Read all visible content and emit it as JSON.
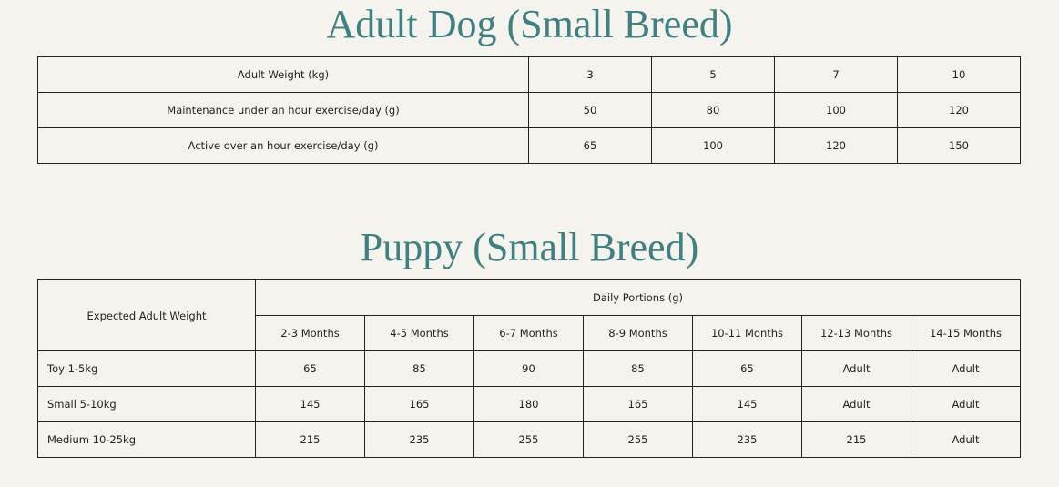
{
  "adult": {
    "title": "Adult Dog (Small Breed)",
    "rows": [
      [
        "Adult Weight (kg)",
        3,
        5,
        7,
        10
      ],
      [
        "Maintenance under an hour exercise/day (g)",
        50,
        80,
        100,
        120
      ],
      [
        "Active over an hour exercise/day (g)",
        65,
        100,
        120,
        150
      ]
    ]
  },
  "puppy": {
    "title": "Puppy (Small Breed)",
    "row_header": "Expected Adult Weight",
    "group_header": "Daily Portions (g)",
    "columns": [
      "2-3 Months",
      "4-5 Months",
      "6-7 Months",
      "8-9 Months",
      "10-11 Months",
      "12-13 Months",
      "14-15 Months"
    ],
    "rows": [
      {
        "label": "Toy 1-5kg",
        "values": [
          65,
          85,
          90,
          85,
          65,
          "Adult",
          "Adult"
        ]
      },
      {
        "label": "Small 5-10kg",
        "values": [
          145,
          165,
          180,
          165,
          145,
          "Adult",
          "Adult"
        ]
      },
      {
        "label": "Medium 10-25kg",
        "values": [
          215,
          235,
          255,
          255,
          235,
          215,
          "Adult"
        ]
      }
    ]
  }
}
